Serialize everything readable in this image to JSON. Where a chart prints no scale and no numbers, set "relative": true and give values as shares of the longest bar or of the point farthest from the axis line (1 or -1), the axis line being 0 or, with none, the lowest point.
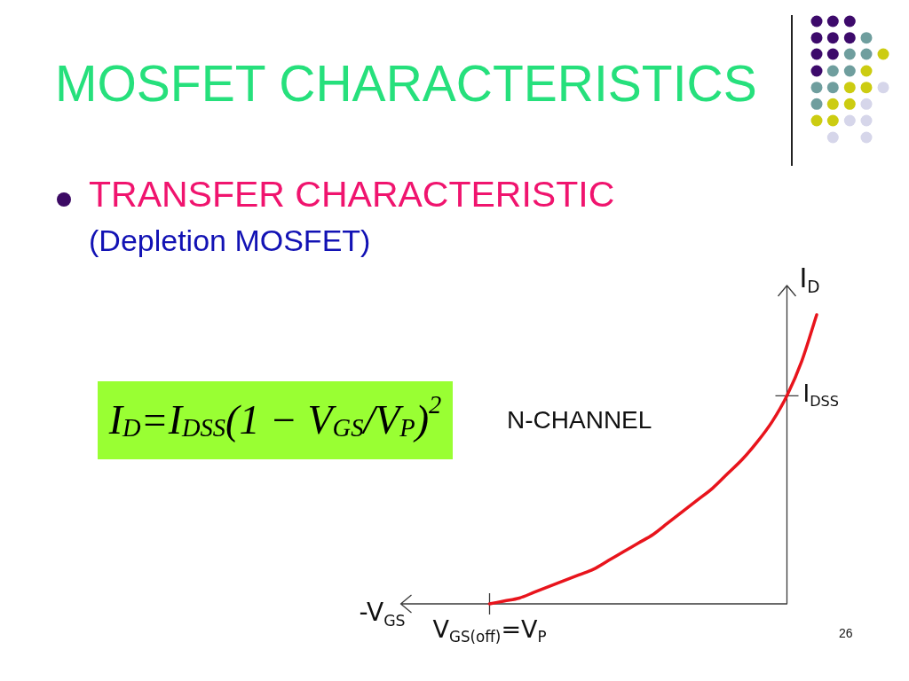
{
  "chart_data": {
    "type": "line",
    "title": "MOSFET CHARACTERISTICS",
    "subtitle": "TRANSFER CHARACTERISTIC",
    "xlabel": "-V$_{GS}$",
    "ylabel": "I$_{D}$",
    "annotations": [
      "(Depletion MOSFET)",
      "I$_{D}$=I$_{DSS}$(1 − V$_{GS}$/V$_{P}$)$^{2}$",
      "N-CHANNEL",
      "I$_{DSS}$",
      {
        "text": "V$_{GS(off)}$=V$_{P}$",
        "y": 0
      },
      "26"
    ],
    "categories": [
      null,
      null,
      null,
      null,
      null,
      null,
      null,
      null,
      null,
      null,
      null,
      null,
      null,
      null,
      null,
      null,
      null,
      null,
      null,
      null,
      null,
      null,
      null
    ],
    "values": [
      0,
      0.01,
      0.02,
      0.04,
      0.06,
      0.08,
      0.1,
      0.12,
      0.15,
      0.18,
      0.21,
      0.24,
      0.28,
      0.32,
      0.36,
      0.4,
      0.45,
      0.5,
      0.56,
      0.63,
      0.72,
      0.84,
      1
    ],
    "color": "#e8141c",
    "relative": true,
    "marker": "none",
    "line_style": "solid"
  }
}
